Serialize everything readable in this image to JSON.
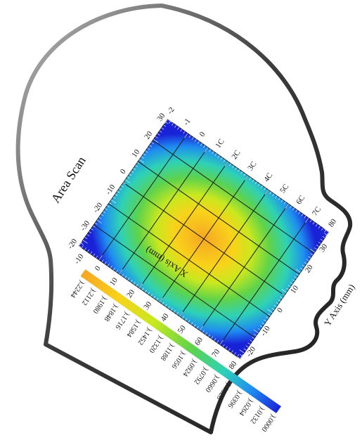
{
  "chart_data": {
    "type": "heatmap",
    "title": "Area Scan",
    "x_axis": {
      "label": "X Axis (mm)",
      "ticks_top": [
        "-2",
        "-1",
        "0",
        "1C",
        "2C",
        "3C",
        "4C",
        "5C",
        "6C",
        "7C",
        "80"
      ],
      "ticks_bottom": [
        "-10",
        "0",
        "10",
        "20",
        "30",
        "40",
        "50",
        "60",
        "70",
        "80"
      ]
    },
    "y_axis": {
      "label": "Y Axis (mm)",
      "ticks_left": [
        "30",
        "20",
        "10",
        "0",
        "-10",
        "-20",
        "-30",
        "-20"
      ],
      "ticks_right": [
        "30",
        "20",
        "10",
        "0",
        "-10",
        "-20"
      ]
    },
    "color_scale": {
      "colors": [
        "#f6a623",
        "#f9d21a",
        "#c9e81f",
        "#5fd34a",
        "#2ed1b7",
        "#1e8df0",
        "#1a22d8"
      ],
      "labels": [
        ").2244",
        ").2112",
        ").1980",
        ").1848",
        ").1716",
        ").1584",
        ").1452",
        ").1320",
        ").1188",
        ").1056",
        ").0924",
        ").0792",
        ").0660",
        ").0528",
        ").0396",
        ").0264",
        ").0132",
        ").0000"
      ],
      "min": 0.0,
      "max": 0.2244
    }
  }
}
